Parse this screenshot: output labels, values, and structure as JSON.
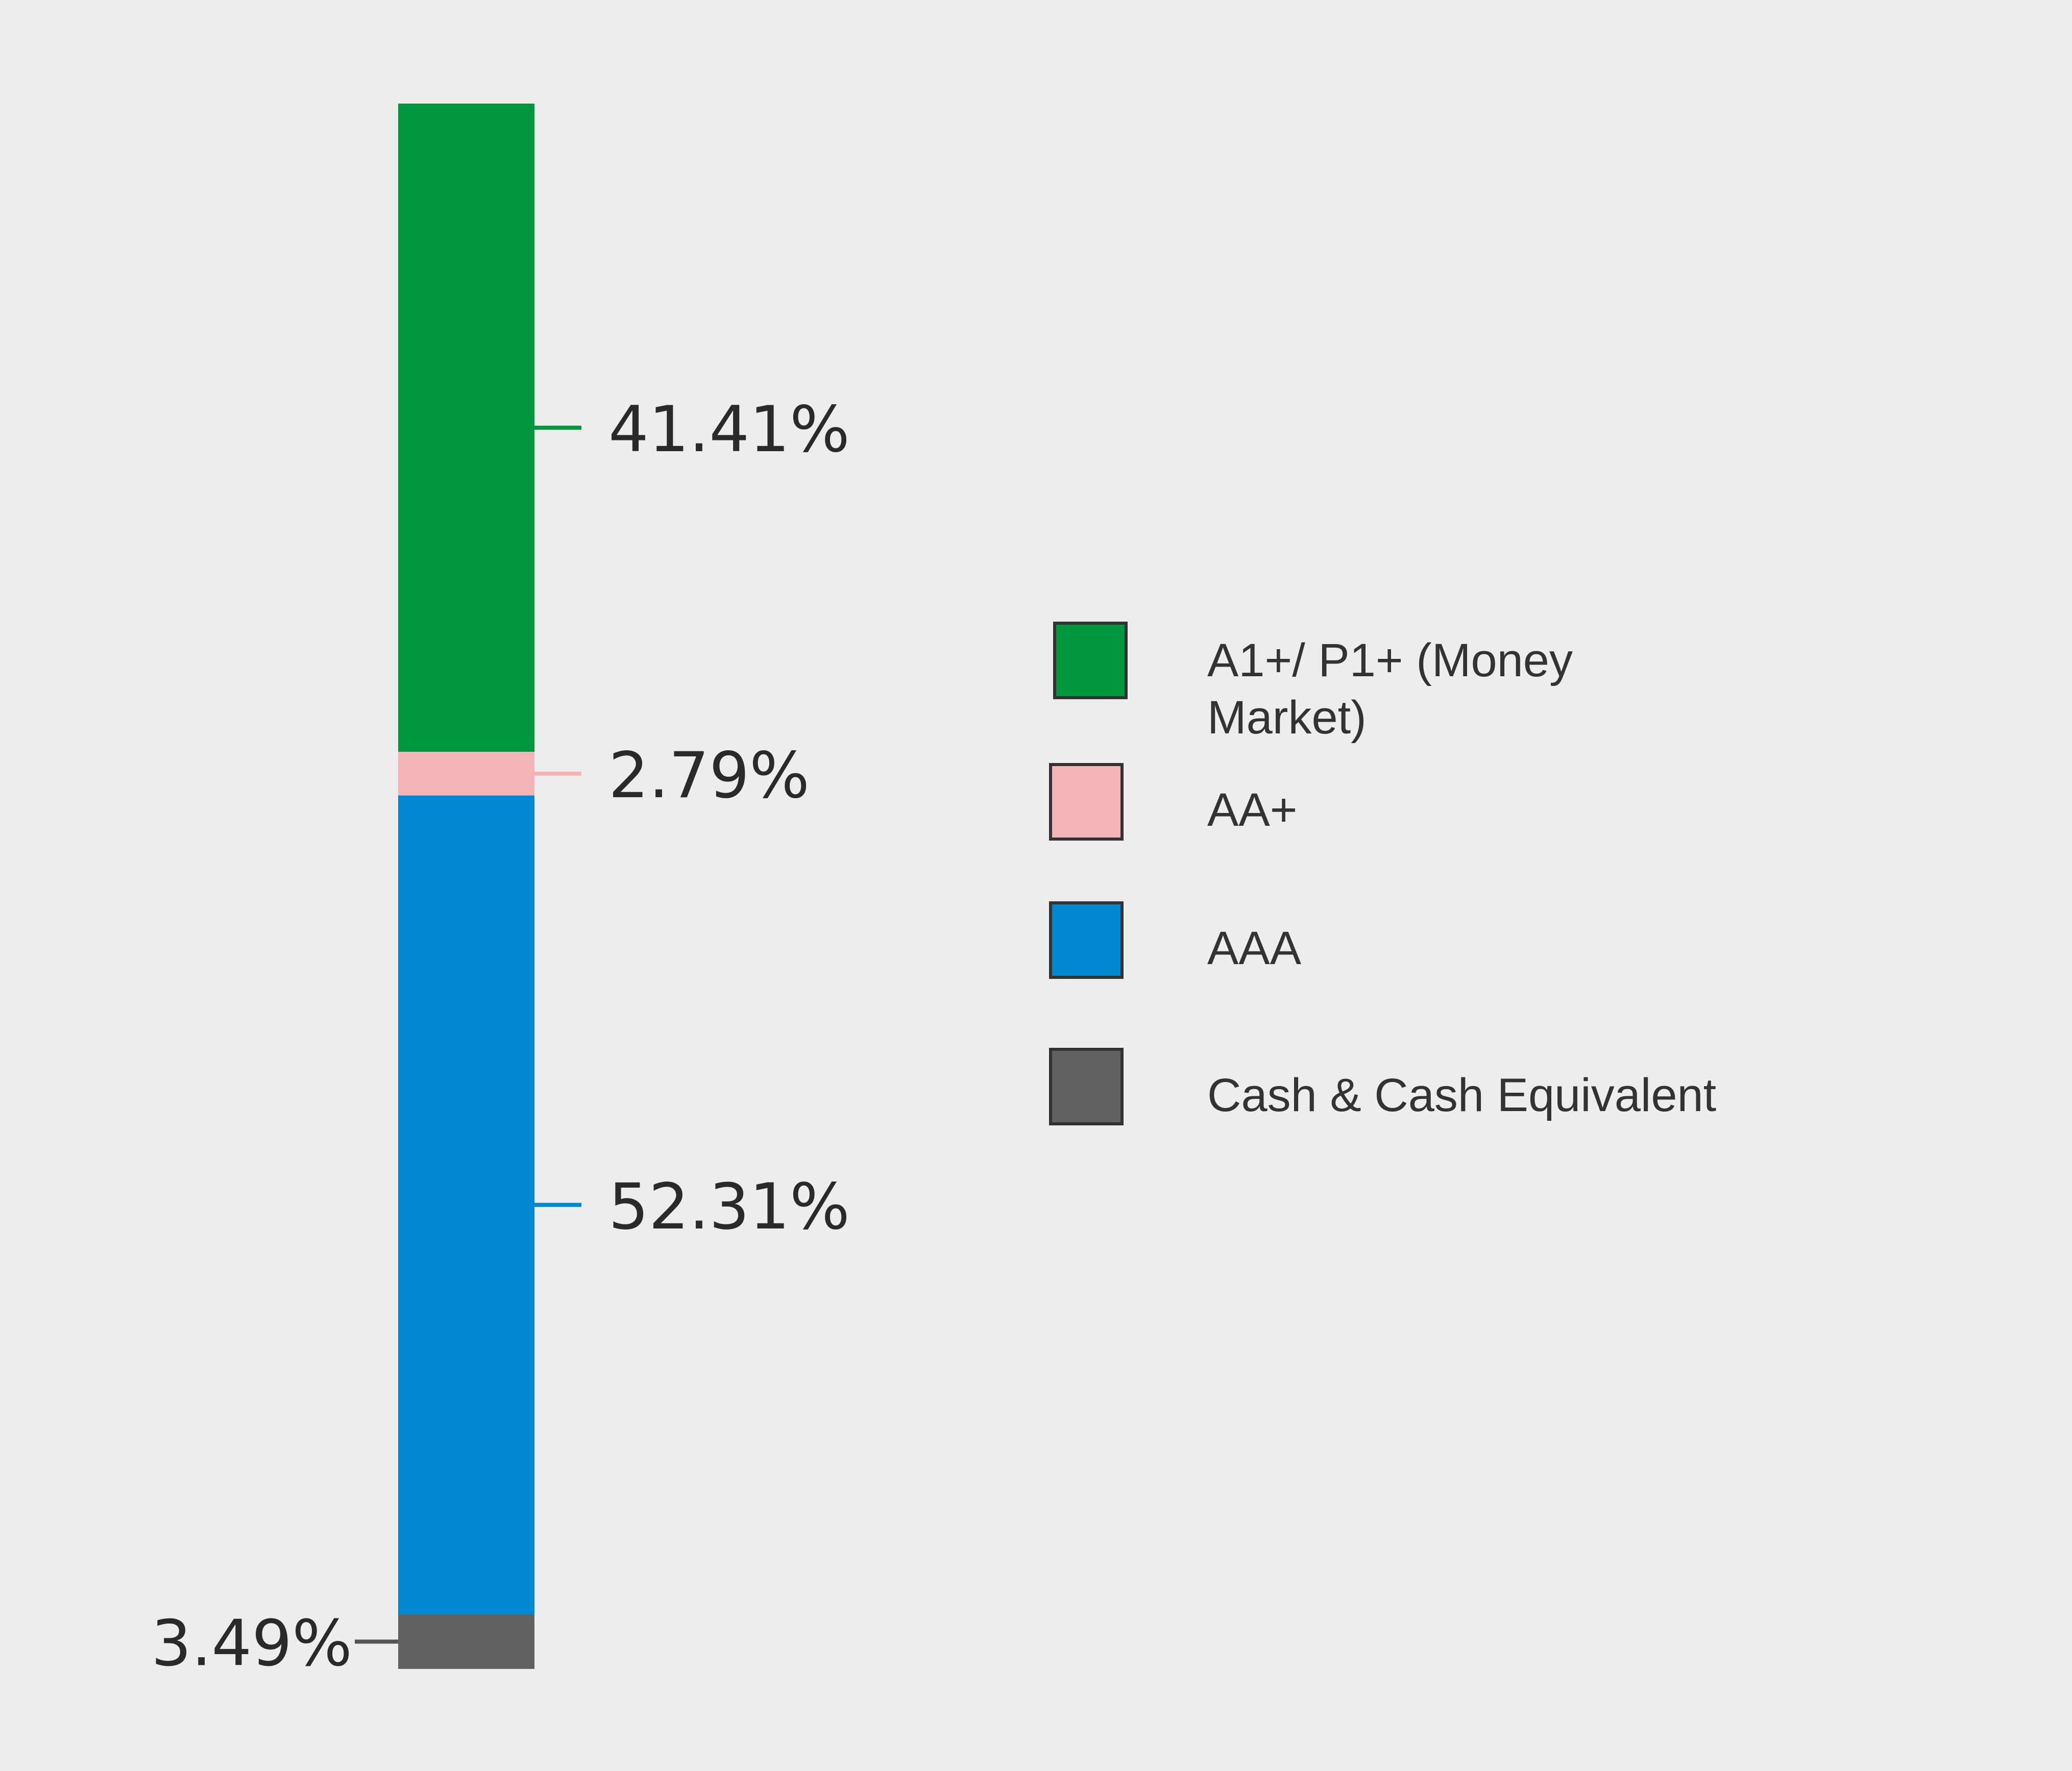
{
  "chart_data": {
    "type": "bar",
    "stacked": true,
    "orientation": "vertical",
    "categories": [
      ""
    ],
    "series": [
      {
        "name": "A1+/ P1+ (Money Market)",
        "values": [
          41.41
        ],
        "label": "41.41%",
        "color": "#00973f",
        "label_side": "right"
      },
      {
        "name": "AA+",
        "values": [
          2.79
        ],
        "label": "2.79%",
        "color": "#f2b4b6",
        "label_side": "right"
      },
      {
        "name": "AAA",
        "values": [
          52.31
        ],
        "label": "52.31%",
        "color": "#0089d3",
        "label_side": "right"
      },
      {
        "name": "Cash & Cash Equivalent",
        "values": [
          3.49
        ],
        "label": "3.49%",
        "color": "#616161",
        "label_side": "left"
      }
    ],
    "stack_order": "first series at top",
    "ylim": [
      0,
      100
    ],
    "title": "",
    "xlabel": "",
    "ylabel": "",
    "grid": false,
    "legend_position": "right"
  }
}
